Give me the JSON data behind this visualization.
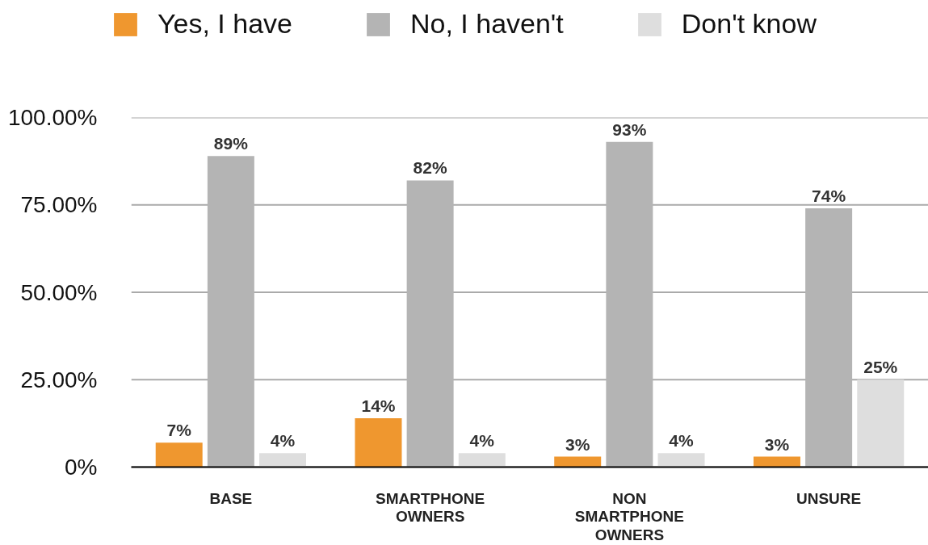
{
  "chart_data": {
    "type": "bar",
    "categories": [
      "BASE",
      "SMARTPHONE OWNERS",
      "NON SMARTPHONE OWNERS",
      "UNSURE"
    ],
    "series": [
      {
        "name": "Yes, I have",
        "color": "#ef972f",
        "values": [
          7,
          14,
          3,
          3
        ],
        "value_labels": [
          "7%",
          "14%",
          "3%",
          "3%"
        ]
      },
      {
        "name": "No, I haven't",
        "color": "#b4b4b4",
        "values": [
          89,
          82,
          93,
          74
        ],
        "value_labels": [
          "89%",
          "82%",
          "93%",
          "74%"
        ]
      },
      {
        "name": "Don't know",
        "color": "#dedede",
        "values": [
          4,
          4,
          4,
          25
        ],
        "value_labels": [
          "4%",
          "4%",
          "4%",
          "25%"
        ]
      }
    ],
    "ylim": [
      0,
      100
    ],
    "yticks": [
      {
        "value": 0,
        "label": "0%"
      },
      {
        "value": 25,
        "label": "25.00%"
      },
      {
        "value": 50,
        "label": "50.00%"
      },
      {
        "value": 75,
        "label": "75.00%"
      },
      {
        "value": 100,
        "label": "100.00%"
      }
    ],
    "grid": "y",
    "legend": "top"
  }
}
